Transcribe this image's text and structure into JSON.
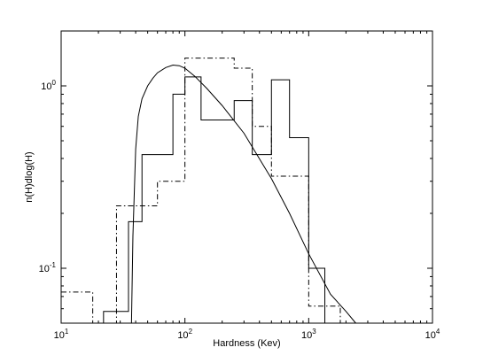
{
  "chart_data": {
    "type": "line",
    "title": "",
    "xlabel": "Hardness (Kev)",
    "ylabel": "n(H)dlog(H)",
    "xscale": "log",
    "yscale": "log",
    "xlim": [
      10,
      10000
    ],
    "ylim": [
      0.05,
      2.0
    ],
    "grid": false,
    "legend": "none",
    "x_ticks": [
      {
        "base": "10",
        "exp": "1",
        "value": 10
      },
      {
        "base": "10",
        "exp": "2",
        "value": 100
      },
      {
        "base": "10",
        "exp": "3",
        "value": 1000
      },
      {
        "base": "10",
        "exp": "4",
        "value": 10000
      }
    ],
    "y_ticks": [
      {
        "base": "10",
        "exp": "-1",
        "value": 0.1
      },
      {
        "base": "10",
        "exp": "0",
        "value": 1
      }
    ],
    "series": [
      {
        "style": "solid-step",
        "edges": [
          22,
          28,
          35,
          45,
          60,
          80,
          100,
          135,
          180,
          250,
          350,
          500,
          700,
          1000,
          1350
        ],
        "values": [
          0.058,
          0.058,
          0.18,
          0.42,
          0.42,
          0.9,
          1.12,
          0.65,
          0.65,
          0.83,
          0.42,
          1.08,
          0.52,
          0.1,
          0.058
        ]
      },
      {
        "style": "dashdot-step",
        "edges": [
          10,
          18,
          28,
          35,
          45,
          60,
          80,
          100,
          135,
          180,
          250,
          350,
          500,
          700,
          1000,
          1350
        ],
        "values": [
          0.074,
          0.05,
          0.22,
          0.22,
          0.22,
          0.3,
          0.3,
          1.42,
          1.42,
          1.42,
          1.25,
          0.6,
          0.32,
          0.32,
          0.062,
          0.062
        ],
        "tail_to": 1800
      },
      {
        "style": "solid-curve",
        "x": [
          37,
          38,
          40,
          42,
          45,
          50,
          55,
          60,
          70,
          80,
          90,
          100,
          120,
          150,
          200,
          300,
          500,
          700,
          1000,
          1500,
          2000,
          2400
        ],
        "y": [
          0.05,
          0.15,
          0.45,
          0.68,
          0.85,
          1.0,
          1.1,
          1.18,
          1.26,
          1.3,
          1.29,
          1.25,
          1.13,
          0.97,
          0.78,
          0.55,
          0.31,
          0.2,
          0.12,
          0.072,
          0.058,
          0.05
        ]
      }
    ]
  }
}
